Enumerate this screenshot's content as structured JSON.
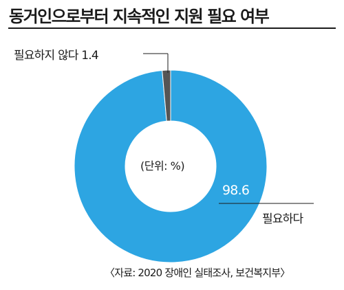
{
  "chart_data": {
    "type": "pie",
    "title": "동거인으로부터 지속적인 지원 필요 여부",
    "unit_note": "(단위: %)",
    "slices": [
      {
        "label": "필요하다",
        "value": 98.6,
        "value_text": "98.6",
        "color": "#2da5e2"
      },
      {
        "label": "필요하지 않다",
        "value": 1.4,
        "value_text": "1.4",
        "color": "#555555"
      }
    ],
    "donut": true,
    "source": "〈자료: 2020 장애인 실태조사, 보건복지부〉"
  }
}
